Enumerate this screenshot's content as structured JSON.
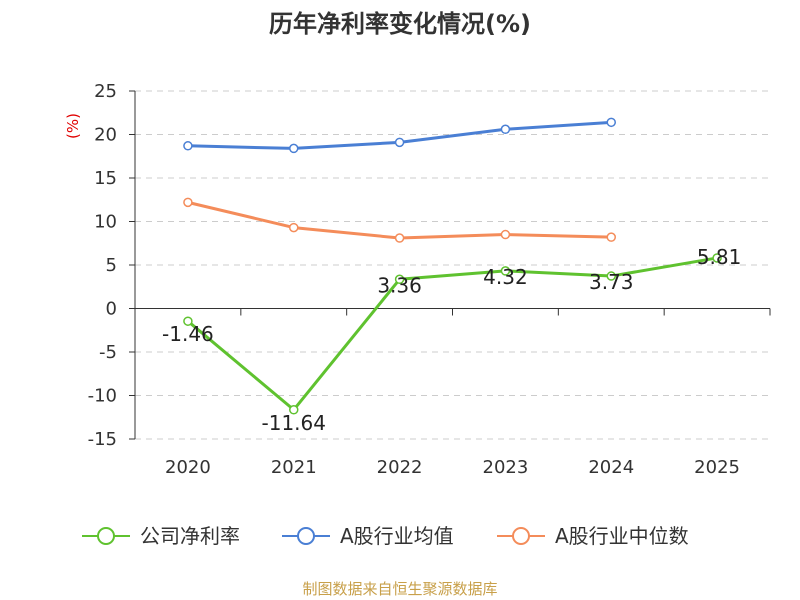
{
  "chart_data": {
    "type": "line",
    "title": "历年净利率变化情况(%)",
    "ylabel": "(%)",
    "xlabel": "",
    "categories": [
      "2020",
      "2021",
      "2022",
      "2023",
      "2024",
      "2025"
    ],
    "ylim": [
      -15,
      25
    ],
    "yticks": [
      25,
      20,
      15,
      10,
      5,
      0,
      -5,
      -10,
      -15
    ],
    "grid": true,
    "legend_position": "bottom",
    "series": [
      {
        "name": "公司净利率",
        "color": "#5fc22f",
        "values": [
          -1.46,
          -11.64,
          3.36,
          4.32,
          3.73,
          5.81
        ],
        "data_labels": [
          "-1.46",
          "-11.64",
          "3.36",
          "4.32",
          "3.73",
          "5.81"
        ]
      },
      {
        "name": "A股行业均值",
        "color": "#4a7fd4",
        "values": [
          18.7,
          18.4,
          19.1,
          20.6,
          21.4,
          null
        ]
      },
      {
        "name": "A股行业中位数",
        "color": "#f48c5a",
        "values": [
          12.2,
          9.3,
          8.1,
          8.5,
          8.2,
          null
        ]
      }
    ],
    "unit_color": "#e00000"
  },
  "footer": {
    "source": "制图数据来自恒生聚源数据库",
    "color": "#c8a04a"
  }
}
